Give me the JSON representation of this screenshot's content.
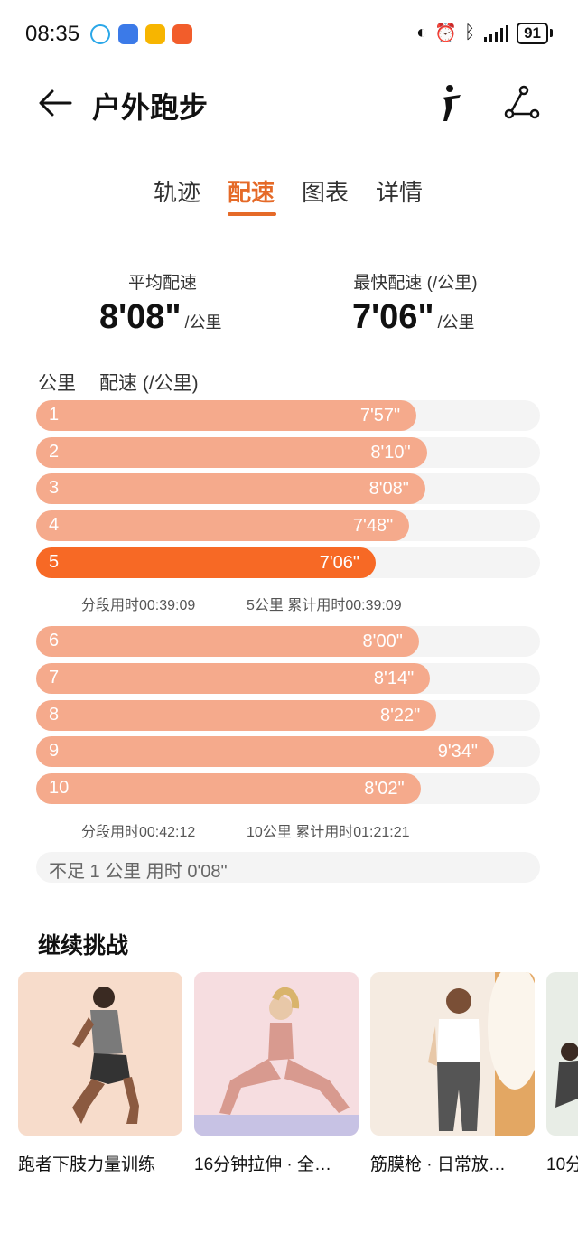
{
  "status_bar": {
    "time": "08:35",
    "notification_icons": [
      "chat-bubble-icon",
      "app-blue-icon",
      "mail-icon",
      "sports-app-icon"
    ],
    "battery": "91"
  },
  "header": {
    "title": "户外跑步",
    "back_icon": "arrow-left-icon",
    "pose_icon": "running-figure-icon",
    "route_icon": "route-icon"
  },
  "tabs": [
    {
      "label": "轨迹"
    },
    {
      "label": "配速",
      "active": true
    },
    {
      "label": "图表"
    },
    {
      "label": "详情"
    }
  ],
  "summary": {
    "avg_label": "平均配速",
    "avg_value": "8'08\"",
    "fast_label": "最快配速 (/公里)",
    "fast_value": "7'06\"",
    "unit": "/公里"
  },
  "table": {
    "col_km": "公里",
    "col_pace": "配速 (/公里)"
  },
  "splits": [
    {
      "km": "1",
      "pace": "7'57\"",
      "seconds": 477
    },
    {
      "km": "2",
      "pace": "8'10\"",
      "seconds": 490
    },
    {
      "km": "3",
      "pace": "8'08\"",
      "seconds": 488
    },
    {
      "km": "4",
      "pace": "7'48\"",
      "seconds": 468
    },
    {
      "km": "5",
      "pace": "7'06\"",
      "seconds": 426,
      "highlight": true
    },
    {
      "km": "6",
      "pace": "8'00\"",
      "seconds": 480
    },
    {
      "km": "7",
      "pace": "8'14\"",
      "seconds": 494
    },
    {
      "km": "8",
      "pace": "8'22\"",
      "seconds": 502
    },
    {
      "km": "9",
      "pace": "9'34\"",
      "seconds": 574
    },
    {
      "km": "10",
      "pace": "8'02\"",
      "seconds": 482
    }
  ],
  "segments": [
    {
      "split_time": "分段用时00:39:09",
      "cumulative": "5公里 累计用时00:39:09"
    },
    {
      "split_time": "分段用时00:42:12",
      "cumulative": "10公里 累计用时01:21:21"
    }
  ],
  "remainder": "不足 1 公里 用时 0'08\"",
  "challenge": {
    "title": "继续挑战",
    "cards": [
      {
        "title": "跑者下肢力量训练"
      },
      {
        "title": "16分钟拉伸 · 全…"
      },
      {
        "title": "筋膜枪 · 日常放…"
      },
      {
        "title": "10分"
      }
    ]
  },
  "colors": {
    "accent": "#e56a28",
    "bar": "#f5aa8c",
    "bar_highlight": "#f76925",
    "track": "#f4f4f4"
  }
}
